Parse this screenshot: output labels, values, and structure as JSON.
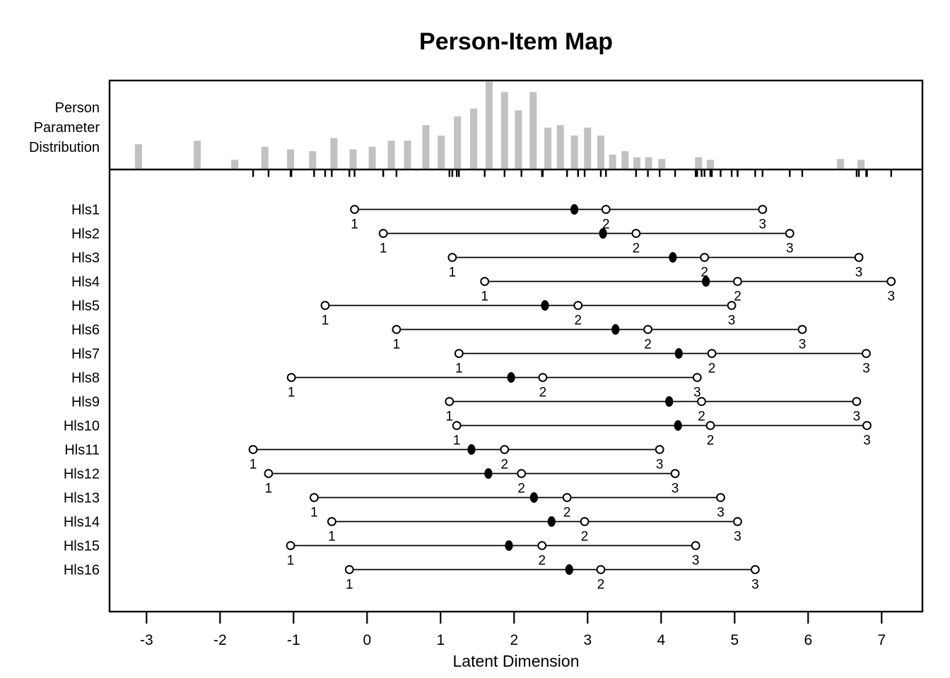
{
  "title": "Person-Item Map",
  "x_axis": {
    "label": "Latent Dimension",
    "tick_values": [
      -3,
      -2,
      -1,
      0,
      1,
      2,
      3,
      4,
      5,
      6,
      7
    ],
    "tick_labels": [
      "-3",
      "-2",
      "-1",
      "0",
      "1",
      "2",
      "3",
      "4",
      "5",
      "6",
      "7"
    ],
    "range": [
      -3.5,
      7.55
    ]
  },
  "upper_panel": {
    "label_lines": [
      "Person",
      "Parameter",
      "Distribution"
    ]
  },
  "colors": {
    "bar_fill": "#c1c1c1",
    "foreground": "#000000",
    "background": "#ffffff"
  },
  "chart_data": [
    {
      "type": "bar",
      "title": "Person Parameter Distribution",
      "note": "histogram of person parameters; heights relative to tallest bar (no y axis shown)",
      "x": [
        -3.11,
        -2.31,
        -1.8,
        -1.39,
        -1.04,
        -0.74,
        -0.45,
        -0.19,
        0.07,
        0.33,
        0.55,
        0.8,
        1.01,
        1.23,
        1.45,
        1.66,
        1.87,
        2.06,
        2.26,
        2.46,
        2.63,
        2.82,
        3.0,
        3.18,
        3.34,
        3.51,
        3.67,
        3.83,
        4.01,
        4.51,
        4.67,
        6.44,
        6.72
      ],
      "heights_relative": [
        0.28,
        0.32,
        0.1,
        0.25,
        0.22,
        0.2,
        0.35,
        0.22,
        0.25,
        0.32,
        0.32,
        0.5,
        0.38,
        0.6,
        0.69,
        1.0,
        0.88,
        0.67,
        0.88,
        0.47,
        0.5,
        0.38,
        0.47,
        0.38,
        0.16,
        0.2,
        0.13,
        0.13,
        0.11,
        0.13,
        0.1,
        0.11,
        0.1
      ],
      "xlabel": "Latent Dimension",
      "ylabel": ""
    },
    {
      "type": "scatter",
      "title": "Item thresholds (open circles, labelled 1-3) and item locations (filled circles)",
      "threshold_labels": [
        "1",
        "2",
        "3"
      ],
      "items": [
        {
          "label": "Hls1",
          "location": 2.82,
          "thresholds": [
            -0.17,
            3.25,
            5.38
          ]
        },
        {
          "label": "Hls2",
          "location": 3.21,
          "thresholds": [
            0.22,
            3.66,
            5.75
          ]
        },
        {
          "label": "Hls3",
          "location": 4.16,
          "thresholds": [
            1.16,
            4.59,
            6.69
          ]
        },
        {
          "label": "Hls4",
          "location": 4.61,
          "thresholds": [
            1.6,
            5.04,
            7.13
          ]
        },
        {
          "label": "Hls5",
          "location": 2.42,
          "thresholds": [
            -0.57,
            2.87,
            4.96
          ]
        },
        {
          "label": "Hls6",
          "location": 3.38,
          "thresholds": [
            0.4,
            3.82,
            5.92
          ]
        },
        {
          "label": "Hls7",
          "location": 4.24,
          "thresholds": [
            1.25,
            4.69,
            6.79
          ]
        },
        {
          "label": "Hls8",
          "location": 1.96,
          "thresholds": [
            -1.03,
            2.39,
            4.49
          ]
        },
        {
          "label": "Hls9",
          "location": 4.11,
          "thresholds": [
            1.12,
            4.55,
            6.66
          ]
        },
        {
          "label": "Hls10",
          "location": 4.23,
          "thresholds": [
            1.22,
            4.67,
            6.8
          ]
        },
        {
          "label": "Hls11",
          "location": 1.42,
          "thresholds": [
            -1.55,
            1.87,
            3.98
          ]
        },
        {
          "label": "Hls12",
          "location": 1.65,
          "thresholds": [
            -1.34,
            2.1,
            4.19
          ]
        },
        {
          "label": "Hls13",
          "location": 2.27,
          "thresholds": [
            -0.72,
            2.72,
            4.81
          ]
        },
        {
          "label": "Hls14",
          "location": 2.51,
          "thresholds": [
            -0.48,
            2.96,
            5.04
          ]
        },
        {
          "label": "Hls15",
          "location": 1.93,
          "thresholds": [
            -1.04,
            2.38,
            4.47
          ]
        },
        {
          "label": "Hls16",
          "location": 2.75,
          "thresholds": [
            -0.24,
            3.18,
            5.28
          ]
        }
      ]
    }
  ]
}
